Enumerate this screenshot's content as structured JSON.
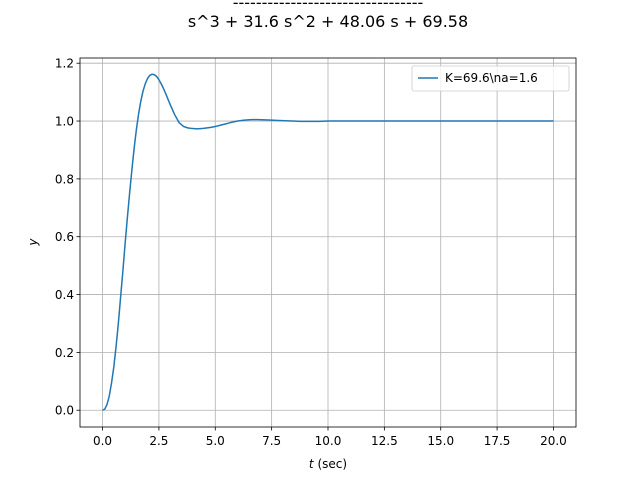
{
  "chart_data": {
    "type": "line",
    "title_numerator_dashes": "---------------------------------",
    "title_denominator": "s^3 + 31.6 s^2 + 48.06 s + 69.58",
    "xlabel_var": "t",
    "xlabel_unit": " (sec)",
    "ylabel": "y",
    "xlim": [
      -1.0,
      21.0
    ],
    "ylim": [
      -0.058,
      1.218
    ],
    "xticks": [
      0.0,
      2.5,
      5.0,
      7.5,
      10.0,
      12.5,
      15.0,
      17.5,
      20.0
    ],
    "xtick_labels": [
      "0.0",
      "2.5",
      "5.0",
      "7.5",
      "10.0",
      "12.5",
      "15.0",
      "17.5",
      "20.0"
    ],
    "yticks": [
      0.0,
      0.2,
      0.4,
      0.6,
      0.8,
      1.0,
      1.2
    ],
    "ytick_labels": [
      "0.0",
      "0.2",
      "0.4",
      "0.6",
      "0.8",
      "1.0",
      "1.2"
    ],
    "grid": true,
    "legend_position": "top-right",
    "series": [
      {
        "name": "K=69.6\\na=1.6",
        "color": "#1f77b4",
        "x": [
          0.0,
          0.1,
          0.2,
          0.3,
          0.4,
          0.5,
          0.6,
          0.7,
          0.8,
          0.9,
          1.0,
          1.1,
          1.2,
          1.3,
          1.4,
          1.5,
          1.6,
          1.7,
          1.8,
          1.9,
          2.0,
          2.1,
          2.2,
          2.3,
          2.4,
          2.5,
          2.6,
          2.7,
          2.8,
          2.9,
          3.0,
          3.2,
          3.4,
          3.6,
          3.8,
          4.0,
          4.2,
          4.4,
          4.6,
          4.8,
          5.0,
          5.2,
          5.4,
          5.6,
          5.8,
          6.0,
          6.3,
          6.6,
          6.9,
          7.2,
          7.5,
          7.8,
          8.1,
          8.4,
          8.8,
          9.2,
          9.6,
          10.0,
          11.0,
          12.0,
          13.0,
          14.0,
          15.0,
          16.0,
          17.0,
          18.0,
          19.0,
          20.0
        ],
        "y": [
          0.0,
          0.004,
          0.02,
          0.05,
          0.095,
          0.15,
          0.22,
          0.3,
          0.39,
          0.48,
          0.575,
          0.665,
          0.75,
          0.83,
          0.905,
          0.97,
          1.025,
          1.07,
          1.105,
          1.13,
          1.148,
          1.158,
          1.162,
          1.16,
          1.154,
          1.143,
          1.129,
          1.113,
          1.095,
          1.076,
          1.057,
          1.022,
          0.994,
          0.981,
          0.976,
          0.974,
          0.973,
          0.974,
          0.976,
          0.978,
          0.981,
          0.985,
          0.989,
          0.993,
          0.997,
          1.0,
          1.003,
          1.005,
          1.005,
          1.004,
          1.003,
          1.002,
          1.001,
          1.0,
          0.999,
          0.999,
          0.999,
          1.0,
          1.0,
          1.0,
          1.0,
          1.0,
          1.0,
          1.0,
          1.0,
          1.0,
          1.0,
          1.0
        ]
      }
    ]
  }
}
